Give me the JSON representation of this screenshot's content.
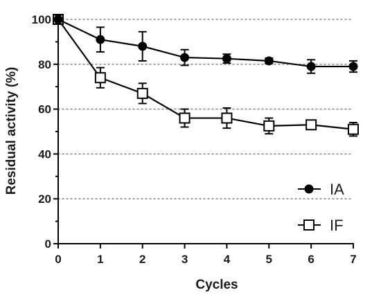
{
  "chart_data": {
    "type": "line",
    "xlabel": "Cycles",
    "ylabel": "Residual activity (%)",
    "x": [
      0,
      1,
      2,
      3,
      4,
      5,
      6,
      7
    ],
    "xlim": [
      0,
      7
    ],
    "ylim": [
      0,
      100
    ],
    "x_ticks": [
      "0",
      "1",
      "2",
      "3",
      "4",
      "5",
      "6",
      "7"
    ],
    "y_ticks": [
      "0",
      "20",
      "40",
      "60",
      "80",
      "100"
    ],
    "grid": "horizontal dotted",
    "legend_position": "bottom-right",
    "series": [
      {
        "name": "IA",
        "marker": "filled-circle",
        "values": [
          100,
          91,
          88,
          83,
          82.5,
          81.5,
          79,
          79
        ],
        "errors": [
          2,
          5.5,
          6.5,
          3.5,
          2,
          1.2,
          3,
          2.5
        ]
      },
      {
        "name": "IF",
        "marker": "open-square",
        "values": [
          100,
          74,
          67,
          56,
          56,
          52.5,
          53,
          51
        ],
        "errors": [
          2,
          4.5,
          4.5,
          4,
          4.5,
          3.5,
          1.5,
          3
        ]
      }
    ]
  }
}
